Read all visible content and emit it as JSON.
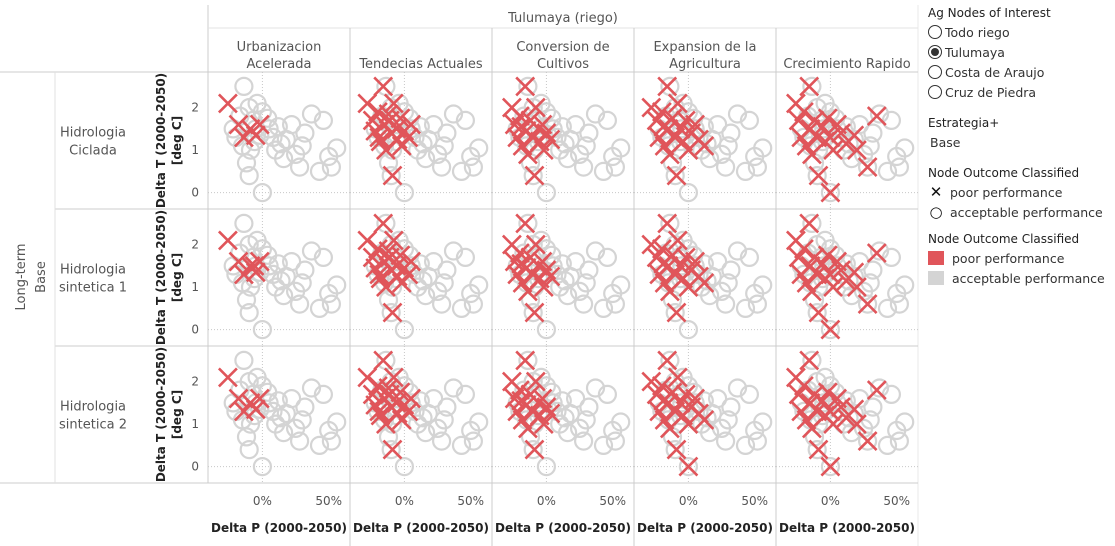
{
  "header": {
    "column_group": "Tulumaya (riego)",
    "columns": [
      [
        "Urbanizacion",
        "Acelerada"
      ],
      [
        "Tendecias Actuales"
      ],
      [
        "Conversion de",
        "Cultivos"
      ],
      [
        "Expansion de la",
        "Agricultura"
      ],
      [
        "Crecimiento Rapido"
      ]
    ],
    "row_group_lines": [
      "Long-term",
      "Base"
    ],
    "rows": [
      [
        "Hidrologia",
        "Ciclada"
      ],
      [
        "Hidrologia",
        "sintetica 1"
      ],
      [
        "Hidrologia",
        "sintetica 2"
      ]
    ]
  },
  "legend": {
    "nodes": {
      "title": "Ag Nodes of Interest",
      "items": [
        "Todo riego",
        "Tulumaya",
        "Costa de Araujo",
        "Cruz de Piedra"
      ],
      "selected": "Tulumaya"
    },
    "estrategia": {
      "title": "Estrategia+",
      "value": "Base"
    },
    "shape": {
      "title": "Node Outcome Classified",
      "items": [
        {
          "icon": "cross-icon",
          "label": "poor performance"
        },
        {
          "icon": "ring-icon",
          "label": "acceptable performance"
        }
      ]
    },
    "color": {
      "title": "Node Outcome Classified",
      "items": [
        {
          "label": "poor performance",
          "color": "#e0555a"
        },
        {
          "label": "acceptable performance",
          "color": "#d4d4d4"
        }
      ]
    }
  },
  "chart_data": {
    "type": "scatter",
    "ylabel": [
      "Delta T (2000-2050)",
      "[deg C]"
    ],
    "xlabel": "Delta P (2000-2050)",
    "x_ticks": [
      "0%",
      "50%"
    ],
    "y_ticks": [
      "0",
      "1",
      "2"
    ],
    "colors": {
      "poor": "#e0555a",
      "acceptable": "#d4d4d4"
    },
    "acceptable_points": [
      [
        -0.14,
        2.5
      ],
      [
        -0.1,
        2.0
      ],
      [
        -0.07,
        1.7
      ],
      [
        -0.04,
        2.1
      ],
      [
        0.0,
        1.9
      ],
      [
        0.04,
        1.75
      ],
      [
        0.12,
        1.55
      ],
      [
        0.08,
        1.3
      ],
      [
        -0.05,
        1.5
      ],
      [
        -0.2,
        1.3
      ],
      [
        -0.15,
        1.1
      ],
      [
        -0.09,
        1.0
      ],
      [
        -0.1,
        0.4
      ],
      [
        -0.02,
        1.35
      ],
      [
        0.1,
        1.0
      ],
      [
        0.14,
        1.15
      ],
      [
        0.16,
        0.8
      ],
      [
        0.22,
        1.6
      ],
      [
        0.25,
        0.9
      ],
      [
        0.28,
        0.6
      ],
      [
        0.32,
        1.4
      ],
      [
        0.37,
        1.85
      ],
      [
        0.43,
        0.5
      ],
      [
        0.46,
        1.7
      ],
      [
        0.5,
        0.85
      ],
      [
        0.52,
        0.6
      ],
      [
        0.56,
        1.05
      ],
      [
        0.0,
        0.0
      ],
      [
        -0.22,
        1.5
      ],
      [
        -0.17,
        1.8
      ],
      [
        -0.06,
        1.2
      ],
      [
        0.05,
        1.5
      ],
      [
        0.18,
        1.25
      ],
      [
        -0.12,
        0.7
      ],
      [
        0.3,
        1.1
      ]
    ],
    "poor_points": [
      [
        [
          -0.26,
          2.1
        ],
        [
          -0.18,
          1.6
        ],
        [
          -0.14,
          1.3
        ],
        [
          -0.09,
          1.5
        ],
        [
          -0.05,
          1.35
        ],
        [
          -0.02,
          1.6
        ]
      ],
      [
        [
          -0.28,
          2.1
        ],
        [
          -0.24,
          1.7
        ],
        [
          -0.22,
          1.45
        ],
        [
          -0.2,
          1.9
        ],
        [
          -0.18,
          1.2
        ],
        [
          -0.16,
          2.5
        ],
        [
          -0.15,
          1.6
        ],
        [
          -0.14,
          1.0
        ],
        [
          -0.12,
          1.85
        ],
        [
          -0.1,
          1.4
        ],
        [
          -0.09,
          0.4
        ],
        [
          -0.08,
          2.1
        ],
        [
          -0.06,
          1.5
        ],
        [
          -0.05,
          1.25
        ],
        [
          -0.03,
          1.75
        ],
        [
          -0.02,
          1.1
        ],
        [
          0.0,
          1.45
        ],
        [
          0.03,
          1.3
        ],
        [
          0.05,
          1.6
        ],
        [
          -0.19,
          1.3
        ],
        [
          -0.11,
          1.7
        ]
      ],
      [
        [
          -0.26,
          2.0
        ],
        [
          -0.24,
          1.6
        ],
        [
          -0.22,
          1.3
        ],
        [
          -0.2,
          1.8
        ],
        [
          -0.18,
          1.1
        ],
        [
          -0.16,
          2.5
        ],
        [
          -0.15,
          1.45
        ],
        [
          -0.14,
          0.9
        ],
        [
          -0.12,
          1.7
        ],
        [
          -0.1,
          1.3
        ],
        [
          -0.09,
          0.4
        ],
        [
          -0.08,
          2.0
        ],
        [
          -0.06,
          1.5
        ],
        [
          -0.05,
          1.2
        ],
        [
          -0.03,
          1.6
        ],
        [
          -0.02,
          1.0
        ],
        [
          0.0,
          1.4
        ],
        [
          0.03,
          1.25
        ],
        [
          -0.19,
          1.55
        ]
      ],
      [
        [
          -0.28,
          2.0
        ],
        [
          -0.24,
          1.7
        ],
        [
          -0.22,
          1.3
        ],
        [
          -0.2,
          1.9
        ],
        [
          -0.18,
          1.1
        ],
        [
          -0.16,
          2.5
        ],
        [
          -0.15,
          1.5
        ],
        [
          -0.14,
          0.9
        ],
        [
          -0.12,
          1.75
        ],
        [
          -0.1,
          1.3
        ],
        [
          -0.09,
          0.4
        ],
        [
          -0.08,
          2.1
        ],
        [
          -0.06,
          1.5
        ],
        [
          -0.04,
          1.2
        ],
        [
          -0.02,
          1.7
        ],
        [
          0.0,
          1.0
        ],
        [
          0.02,
          1.4
        ],
        [
          0.05,
          1.6
        ],
        [
          0.08,
          1.25
        ],
        [
          0.12,
          1.1
        ],
        [
          -0.19,
          1.55
        ]
      ],
      [
        [
          -0.26,
          2.1
        ],
        [
          -0.24,
          1.7
        ],
        [
          -0.22,
          1.3
        ],
        [
          -0.2,
          1.9
        ],
        [
          -0.18,
          1.1
        ],
        [
          -0.16,
          2.5
        ],
        [
          -0.15,
          1.5
        ],
        [
          -0.14,
          0.9
        ],
        [
          -0.12,
          1.7
        ],
        [
          -0.1,
          1.3
        ],
        [
          -0.09,
          0.4
        ],
        [
          -0.06,
          1.55
        ],
        [
          -0.04,
          1.2
        ],
        [
          -0.02,
          1.75
        ],
        [
          0.0,
          1.3
        ],
        [
          0.02,
          1.0
        ],
        [
          0.05,
          1.6
        ],
        [
          0.08,
          1.4
        ],
        [
          0.12,
          1.15
        ],
        [
          0.18,
          1.35
        ],
        [
          0.2,
          1.0
        ],
        [
          0.28,
          0.6
        ],
        [
          0.35,
          1.8
        ],
        [
          0.0,
          0.0
        ]
      ]
    ]
  }
}
